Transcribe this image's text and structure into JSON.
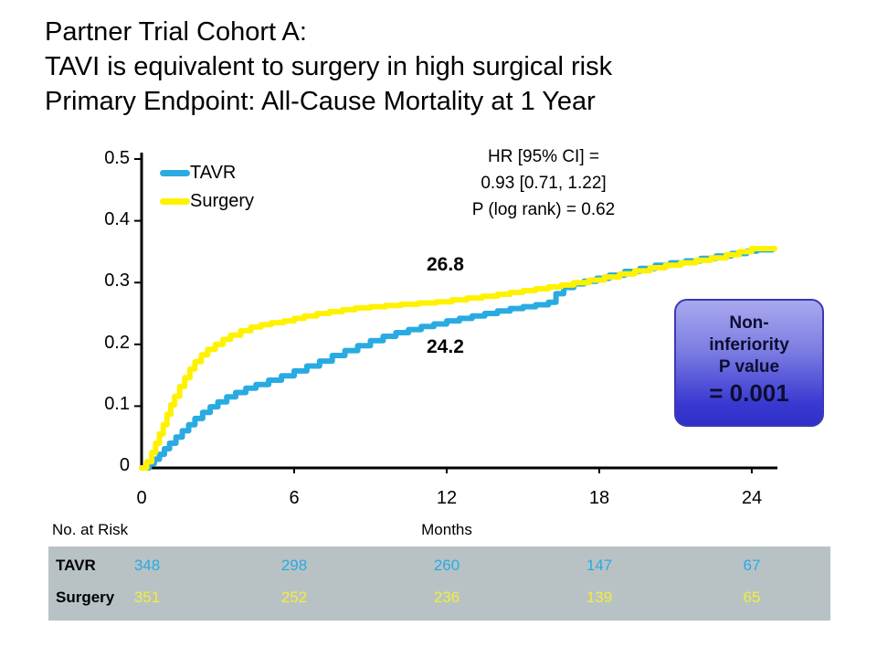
{
  "slide": {
    "title_line1": "Partner Trial Cohort A:",
    "title_line2": "TAVI is equivalent to surgery in high surgical risk",
    "title_line3": "Primary Endpoint: All-Cause Mortality at 1 Year"
  },
  "stats_block": {
    "line1": "HR [95% CI] =",
    "line2": "0.93 [0.71, 1.22]",
    "line3": "P (log rank) = 0.62"
  },
  "noninferiority_box": {
    "line1": "Non-",
    "line2": "inferiority",
    "line3": "P value",
    "line4": "= 0.001"
  },
  "footer": {
    "no_at_risk_label": "No. at Risk",
    "x_axis_title": "Months"
  },
  "risk_table": {
    "rows": [
      {
        "label": "TAVR",
        "color": "#29ABE2",
        "values": [
          "348",
          "298",
          "260",
          "147",
          "67"
        ]
      },
      {
        "label": "Surgery",
        "color": "#F2EE3C",
        "values": [
          "351",
          "252",
          "236",
          "139",
          "65"
        ]
      }
    ]
  },
  "chart_data": {
    "type": "line",
    "subtype": "kaplan-meier-step",
    "title": "All-Cause Mortality",
    "xlabel": "Months",
    "ylabel": "",
    "xlim": [
      0,
      24
    ],
    "ylim": [
      0,
      0.5
    ],
    "grid": false,
    "legend_position": "upper-left-inside",
    "xtick_labels": [
      "0",
      "6",
      "12",
      "18",
      "24"
    ],
    "ytick_labels": [
      "0",
      "0.1",
      "0.2",
      "0.3",
      "0.4",
      "0.5"
    ],
    "legend": [
      {
        "label": "TAVR",
        "color": "#29ABE2"
      },
      {
        "label": "Surgery",
        "color": "#FFF200"
      }
    ],
    "annotations": [
      {
        "text": "26.8",
        "series": "Surgery",
        "at_month": 12
      },
      {
        "text": "24.2",
        "series": "TAVR",
        "at_month": 12
      }
    ],
    "axis_color": "#000000",
    "series": [
      {
        "name": "TAVR",
        "color": "#29ABE2",
        "points_month_pct": [
          [
            0,
            0
          ],
          [
            0.3,
            0.7
          ],
          [
            0.5,
            1.4
          ],
          [
            0.7,
            2.2
          ],
          [
            0.9,
            3.1
          ],
          [
            1.1,
            4.0
          ],
          [
            1.35,
            5.0
          ],
          [
            1.6,
            6.0
          ],
          [
            1.85,
            7.0
          ],
          [
            2.1,
            8.0
          ],
          [
            2.4,
            9.0
          ],
          [
            2.7,
            9.9
          ],
          [
            3.0,
            10.7
          ],
          [
            3.35,
            11.5
          ],
          [
            3.7,
            12.2
          ],
          [
            4.1,
            12.9
          ],
          [
            4.5,
            13.5
          ],
          [
            5.0,
            14.2
          ],
          [
            5.5,
            14.9
          ],
          [
            6.0,
            15.7
          ],
          [
            6.5,
            16.5
          ],
          [
            7.0,
            17.3
          ],
          [
            7.5,
            18.2
          ],
          [
            8.0,
            19.0
          ],
          [
            8.5,
            19.8
          ],
          [
            9.0,
            20.6
          ],
          [
            9.5,
            21.3
          ],
          [
            10.0,
            21.9
          ],
          [
            10.5,
            22.4
          ],
          [
            11.0,
            22.9
          ],
          [
            11.5,
            23.3
          ],
          [
            12.0,
            23.8
          ],
          [
            12.5,
            24.2
          ],
          [
            13.0,
            24.6
          ],
          [
            13.5,
            25.0
          ],
          [
            14.0,
            25.4
          ],
          [
            14.5,
            25.8
          ],
          [
            15.0,
            26.1
          ],
          [
            15.5,
            26.4
          ],
          [
            16.0,
            26.8
          ],
          [
            16.3,
            28.2
          ],
          [
            16.6,
            29.2
          ],
          [
            17.0,
            29.8
          ],
          [
            17.4,
            30.2
          ],
          [
            17.9,
            30.7
          ],
          [
            18.4,
            31.2
          ],
          [
            19.0,
            31.8
          ],
          [
            19.6,
            32.3
          ],
          [
            20.2,
            32.8
          ],
          [
            20.8,
            33.2
          ],
          [
            21.4,
            33.5
          ],
          [
            22.0,
            33.9
          ],
          [
            22.6,
            34.3
          ],
          [
            23.2,
            34.7
          ],
          [
            23.8,
            35.1
          ],
          [
            24.2,
            35.3
          ],
          [
            24.8,
            35.3
          ]
        ]
      },
      {
        "name": "Surgery",
        "color": "#FFF200",
        "points_month_pct": [
          [
            0,
            0
          ],
          [
            0.2,
            1.0
          ],
          [
            0.4,
            2.5
          ],
          [
            0.55,
            4.0
          ],
          [
            0.7,
            5.5
          ],
          [
            0.85,
            7.0
          ],
          [
            1.0,
            8.7
          ],
          [
            1.15,
            10.2
          ],
          [
            1.3,
            11.6
          ],
          [
            1.5,
            13.2
          ],
          [
            1.7,
            14.6
          ],
          [
            1.9,
            16.0
          ],
          [
            2.1,
            17.2
          ],
          [
            2.35,
            18.3
          ],
          [
            2.6,
            19.2
          ],
          [
            2.9,
            20.0
          ],
          [
            3.2,
            20.8
          ],
          [
            3.5,
            21.5
          ],
          [
            3.9,
            22.2
          ],
          [
            4.3,
            22.8
          ],
          [
            4.7,
            23.2
          ],
          [
            5.1,
            23.5
          ],
          [
            5.6,
            23.8
          ],
          [
            6.0,
            24.2
          ],
          [
            6.4,
            24.6
          ],
          [
            6.9,
            25.0
          ],
          [
            7.4,
            25.3
          ],
          [
            7.9,
            25.6
          ],
          [
            8.4,
            25.9
          ],
          [
            9.0,
            26.1
          ],
          [
            9.6,
            26.3
          ],
          [
            10.2,
            26.5
          ],
          [
            10.9,
            26.7
          ],
          [
            11.6,
            26.9
          ],
          [
            12.2,
            27.2
          ],
          [
            12.8,
            27.5
          ],
          [
            13.4,
            27.8
          ],
          [
            14.0,
            28.1
          ],
          [
            14.5,
            28.4
          ],
          [
            15.0,
            28.7
          ],
          [
            15.5,
            29.0
          ],
          [
            16.0,
            29.3
          ],
          [
            16.5,
            29.6
          ],
          [
            17.0,
            30.0
          ],
          [
            17.6,
            30.4
          ],
          [
            18.2,
            30.9
          ],
          [
            18.8,
            31.4
          ],
          [
            19.4,
            31.9
          ],
          [
            20.0,
            32.4
          ],
          [
            20.6,
            32.8
          ],
          [
            21.2,
            33.2
          ],
          [
            21.8,
            33.6
          ],
          [
            22.4,
            34.0
          ],
          [
            23.0,
            34.5
          ],
          [
            23.5,
            35.0
          ],
          [
            24.0,
            35.5
          ],
          [
            24.9,
            35.5
          ]
        ]
      }
    ]
  }
}
